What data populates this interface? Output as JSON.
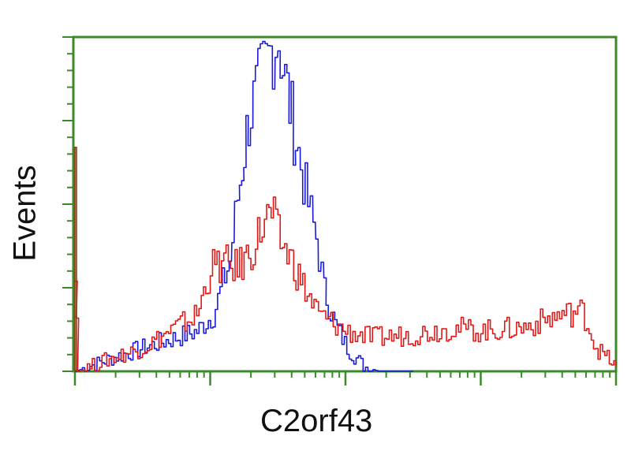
{
  "chart_data": {
    "type": "line",
    "title": "",
    "xlabel": "C2orf43",
    "ylabel": "Events",
    "x_scale": "log",
    "x_decades": [
      0,
      4
    ],
    "ylim": [
      0,
      100
    ],
    "grid": false,
    "axis_color": "#3a8a2a",
    "series": [
      {
        "color": "#1a1adf",
        "x": [
          0,
          0.2,
          0.5,
          0.9,
          1.02,
          1.14,
          1.2,
          1.28,
          1.37,
          1.46,
          1.5,
          1.55,
          1.63,
          1.72,
          1.78,
          1.84,
          1.92,
          2.01,
          2.13,
          2.24,
          2.5
        ],
        "y": [
          0,
          3,
          7,
          12,
          17,
          33,
          52,
          76,
          87,
          98,
          100,
          87,
          69,
          50,
          40,
          24,
          14,
          7,
          1.5,
          0,
          0
        ]
      },
      {
        "color": "#e01818",
        "x": [
          0,
          0.02,
          0.2,
          0.5,
          0.9,
          1.0,
          1.1,
          1.2,
          1.3,
          1.4,
          1.45,
          1.5,
          1.6,
          1.7,
          1.8,
          2.0,
          2.2,
          2.5,
          2.8,
          3.0,
          3.3,
          3.6,
          3.75,
          3.85,
          4.0
        ],
        "y": [
          33,
          0,
          3,
          7,
          17,
          31,
          32,
          31,
          36,
          45,
          47,
          40,
          33,
          24,
          17,
          12,
          10,
          11,
          13,
          12,
          13,
          17,
          18,
          7,
          1.5
        ]
      },
      {
        "color": "#8a3a10",
        "x": [
          0,
          0.01
        ],
        "y": [
          67,
          0
        ]
      }
    ]
  }
}
